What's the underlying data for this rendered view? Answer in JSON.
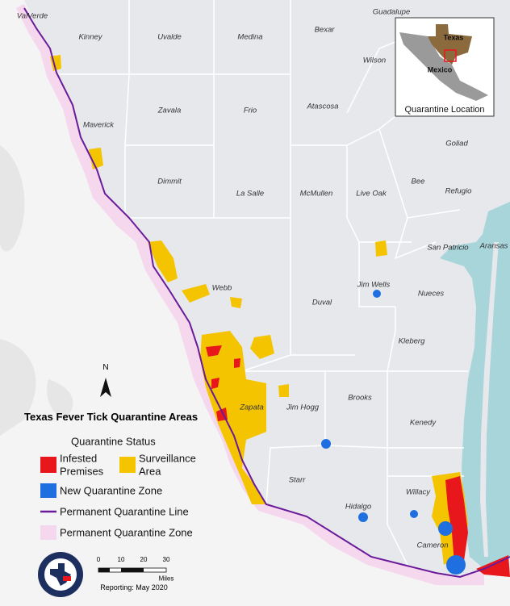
{
  "title": "Texas Fever Tick Quarantine Areas",
  "counties": [
    "ValVerde",
    "Kinney",
    "Uvalde",
    "Medina",
    "Bexar",
    "Guadalupe",
    "Wilson",
    "Atascosa",
    "Frio",
    "Zavala",
    "Maverick",
    "Goliad",
    "Dimmit",
    "La Salle",
    "McMullen",
    "Live Oak",
    "Bee",
    "Refugio",
    "San Patricio",
    "Aransas",
    "Webb",
    "Jim Wells",
    "Duval",
    "Nueces",
    "Kleberg",
    "Zapata",
    "Jim Hogg",
    "Brooks",
    "Kenedy",
    "Starr",
    "Willacy",
    "Hidalgo",
    "Cameron"
  ],
  "inset": {
    "labels": [
      "Texas",
      "Mexico"
    ],
    "title": "Quarantine Location"
  },
  "north_arrow": "N",
  "legend": {
    "heading": "Quarantine Status",
    "items": [
      {
        "label_lines": [
          "Infested",
          "Premises"
        ]
      },
      {
        "label_lines": [
          "Surveillance",
          "Area"
        ]
      },
      {
        "label_lines": [
          "New Quarantine Zone"
        ]
      },
      {
        "label_lines": [
          "Permanent Quarantine Line"
        ]
      },
      {
        "label_lines": [
          "Permanent Quarantine Zone"
        ]
      }
    ]
  },
  "scale_bar": {
    "ticks": [
      0,
      10,
      20,
      30
    ],
    "unit": "Miles"
  },
  "footer": "Reporting: May 2020"
}
